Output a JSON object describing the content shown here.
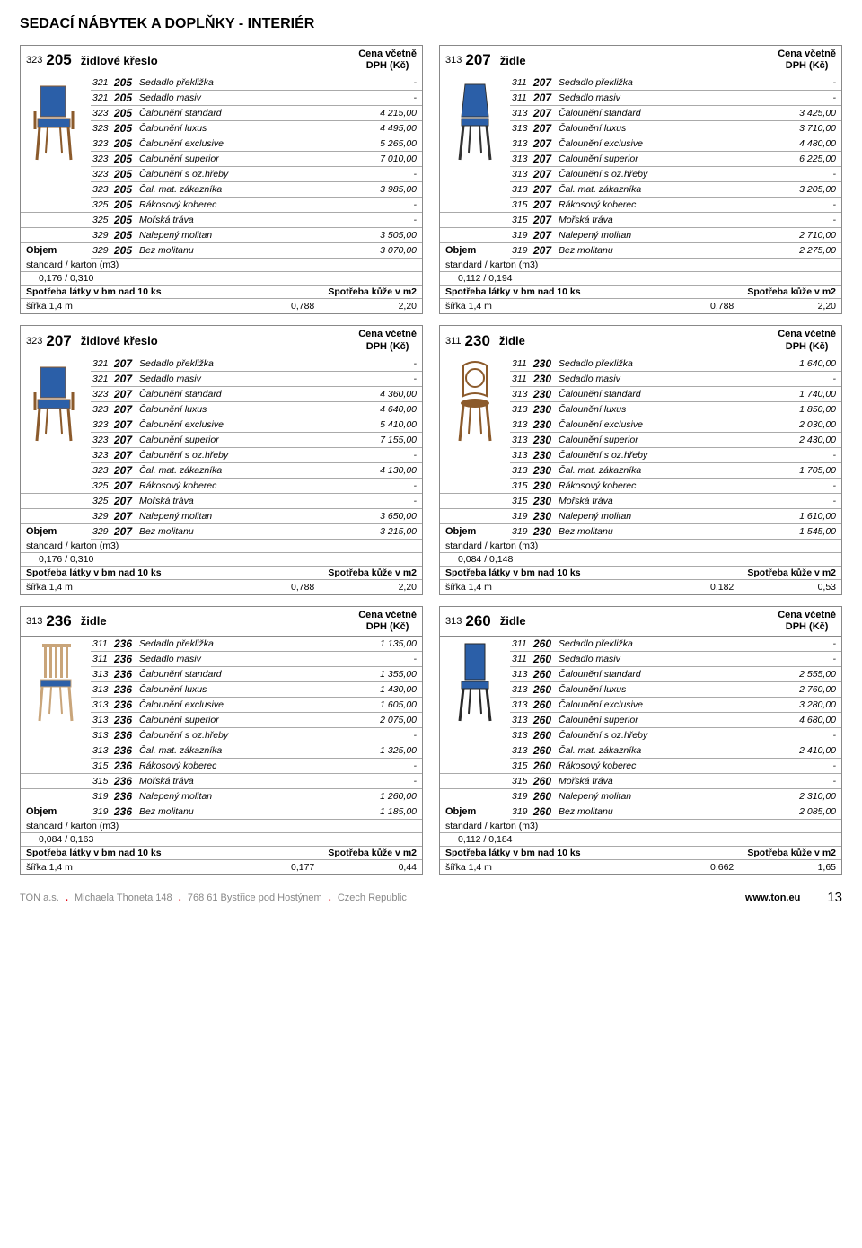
{
  "page_title": "SEDACÍ NÁBYTEK A DOPLŇKY - INTERIÉR",
  "price_header": {
    "line1": "Cena včetně",
    "line2": "DPH (Kč)"
  },
  "labels": {
    "objem": "Objem",
    "standard_karton": "standard / karton (m3)",
    "spotreba_latky": "Spotřeba látky v bm nad 10 ks",
    "spotreba_kuze": "Spotřeba kůže v m2",
    "sirka": "šířka 1,4 m"
  },
  "chair_colors": {
    "blue": "#2b5fa8",
    "wood": "#8b5a2b",
    "light": "#c9a57a"
  },
  "footer": {
    "company": "TON a.s.",
    "addr1": "Michaela Thoneta 148",
    "addr2": "768 61 Bystřice pod Hostýnem",
    "country": "Czech Republic",
    "site": "www.ton.eu",
    "page": "13"
  },
  "products": [
    {
      "hprefix": "323",
      "hcode": "205",
      "hname": "židlové křeslo",
      "chair": "armchair-blue",
      "rows": [
        [
          "321",
          "205",
          "Sedadlo překližka",
          "-"
        ],
        [
          "321",
          "205",
          "Sedadlo masiv",
          "-"
        ],
        [
          "323",
          "205",
          "Čalounění standard",
          "4 215,00"
        ],
        [
          "323",
          "205",
          "Čalounění luxus",
          "4 495,00"
        ],
        [
          "323",
          "205",
          "Čalounění exclusive",
          "5 265,00"
        ],
        [
          "323",
          "205",
          "Čalounění superior",
          "7 010,00"
        ],
        [
          "323",
          "205",
          "Čalounění s oz.hřeby",
          "-"
        ],
        [
          "323",
          "205",
          "Čal. mat. zákazníka",
          "3 985,00"
        ],
        [
          "325",
          "205",
          "Rákosový koberec",
          "-"
        ],
        [
          "325",
          "205",
          "Mořská tráva",
          "-"
        ],
        [
          "329",
          "205",
          "Nalepený molitan",
          "3 505,00"
        ],
        [
          "329",
          "205",
          "Bez molitanu",
          "3 070,00"
        ]
      ],
      "vol": "0,176  /  0,310",
      "s1": "0,788",
      "s2": "2,20"
    },
    {
      "hprefix": "313",
      "hcode": "207",
      "hname": "židle",
      "chair": "chair-blue-back",
      "rows": [
        [
          "311",
          "207",
          "Sedadlo překližka",
          "-"
        ],
        [
          "311",
          "207",
          "Sedadlo masiv",
          "-"
        ],
        [
          "313",
          "207",
          "Čalounění standard",
          "3 425,00"
        ],
        [
          "313",
          "207",
          "Čalounění luxus",
          "3 710,00"
        ],
        [
          "313",
          "207",
          "Čalounění exclusive",
          "4 480,00"
        ],
        [
          "313",
          "207",
          "Čalounění superior",
          "6 225,00"
        ],
        [
          "313",
          "207",
          "Čalounění s oz.hřeby",
          "-"
        ],
        [
          "313",
          "207",
          "Čal. mat. zákazníka",
          "3 205,00"
        ],
        [
          "315",
          "207",
          "Rákosový koberec",
          "-"
        ],
        [
          "315",
          "207",
          "Mořská tráva",
          "-"
        ],
        [
          "319",
          "207",
          "Nalepený molitan",
          "2 710,00"
        ],
        [
          "319",
          "207",
          "Bez molitanu",
          "2 275,00"
        ]
      ],
      "vol": "0,112  /  0,194",
      "s1": "0,788",
      "s2": "2,20"
    },
    {
      "hprefix": "323",
      "hcode": "207",
      "hname": "židlové křeslo",
      "chair": "armchair-blue",
      "rows": [
        [
          "321",
          "207",
          "Sedadlo překližka",
          "-"
        ],
        [
          "321",
          "207",
          "Sedadlo masiv",
          "-"
        ],
        [
          "323",
          "207",
          "Čalounění standard",
          "4 360,00"
        ],
        [
          "323",
          "207",
          "Čalounění luxus",
          "4 640,00"
        ],
        [
          "323",
          "207",
          "Čalounění exclusive",
          "5 410,00"
        ],
        [
          "323",
          "207",
          "Čalounění superior",
          "7 155,00"
        ],
        [
          "323",
          "207",
          "Čalounění s oz.hřeby",
          "-"
        ],
        [
          "323",
          "207",
          "Čal. mat. zákazníka",
          "4 130,00"
        ],
        [
          "325",
          "207",
          "Rákosový koberec",
          "-"
        ],
        [
          "325",
          "207",
          "Mořská tráva",
          "-"
        ],
        [
          "329",
          "207",
          "Nalepený molitan",
          "3 650,00"
        ],
        [
          "329",
          "207",
          "Bez molitanu",
          "3 215,00"
        ]
      ],
      "vol": "0,176  /  0,310",
      "s1": "0,788",
      "s2": "2,20"
    },
    {
      "hprefix": "311",
      "hcode": "230",
      "hname": "židle",
      "chair": "chair-wood-round",
      "rows": [
        [
          "311",
          "230",
          "Sedadlo překližka",
          "1 640,00"
        ],
        [
          "311",
          "230",
          "Sedadlo masiv",
          "-"
        ],
        [
          "313",
          "230",
          "Čalounění standard",
          "1 740,00"
        ],
        [
          "313",
          "230",
          "Čalounění luxus",
          "1 850,00"
        ],
        [
          "313",
          "230",
          "Čalounění exclusive",
          "2 030,00"
        ],
        [
          "313",
          "230",
          "Čalounění superior",
          "2 430,00"
        ],
        [
          "313",
          "230",
          "Čalounění s oz.hřeby",
          "-"
        ],
        [
          "313",
          "230",
          "Čal. mat. zákazníka",
          "1 705,00"
        ],
        [
          "315",
          "230",
          "Rákosový koberec",
          "-"
        ],
        [
          "315",
          "230",
          "Mořská tráva",
          "-"
        ],
        [
          "319",
          "230",
          "Nalepený molitan",
          "1 610,00"
        ],
        [
          "319",
          "230",
          "Bez molitanu",
          "1 545,00"
        ]
      ],
      "vol": "0,084  /  0,148",
      "s1": "0,182",
      "s2": "0,53"
    },
    {
      "hprefix": "313",
      "hcode": "236",
      "hname": "židle",
      "chair": "chair-light-slat",
      "rows": [
        [
          "311",
          "236",
          "Sedadlo překližka",
          "1 135,00"
        ],
        [
          "311",
          "236",
          "Sedadlo masiv",
          "-"
        ],
        [
          "313",
          "236",
          "Čalounění standard",
          "1 355,00"
        ],
        [
          "313",
          "236",
          "Čalounění luxus",
          "1 430,00"
        ],
        [
          "313",
          "236",
          "Čalounění exclusive",
          "1 605,00"
        ],
        [
          "313",
          "236",
          "Čalounění superior",
          "2 075,00"
        ],
        [
          "313",
          "236",
          "Čalounění s oz.hřeby",
          "-"
        ],
        [
          "313",
          "236",
          "Čal. mat. zákazníka",
          "1 325,00"
        ],
        [
          "315",
          "236",
          "Rákosový koberec",
          "-"
        ],
        [
          "315",
          "236",
          "Mořská tráva",
          "-"
        ],
        [
          "319",
          "236",
          "Nalepený molitan",
          "1 260,00"
        ],
        [
          "319",
          "236",
          "Bez molitanu",
          "1 185,00"
        ]
      ],
      "vol": "0,084  /  0,163",
      "s1": "0,177",
      "s2": "0,44"
    },
    {
      "hprefix": "313",
      "hcode": "260",
      "hname": "židle",
      "chair": "chair-blue-tall",
      "rows": [
        [
          "311",
          "260",
          "Sedadlo překližka",
          "-"
        ],
        [
          "311",
          "260",
          "Sedadlo masiv",
          "-"
        ],
        [
          "313",
          "260",
          "Čalounění standard",
          "2 555,00"
        ],
        [
          "313",
          "260",
          "Čalounění luxus",
          "2 760,00"
        ],
        [
          "313",
          "260",
          "Čalounění exclusive",
          "3 280,00"
        ],
        [
          "313",
          "260",
          "Čalounění superior",
          "4 680,00"
        ],
        [
          "313",
          "260",
          "Čalounění s oz.hřeby",
          "-"
        ],
        [
          "313",
          "260",
          "Čal. mat. zákazníka",
          "2 410,00"
        ],
        [
          "315",
          "260",
          "Rákosový koberec",
          "-"
        ],
        [
          "315",
          "260",
          "Mořská tráva",
          "-"
        ],
        [
          "319",
          "260",
          "Nalepený molitan",
          "2 310,00"
        ],
        [
          "319",
          "260",
          "Bez molitanu",
          "2 085,00"
        ]
      ],
      "vol": "0,112  /  0,184",
      "s1": "0,662",
      "s2": "1,65"
    }
  ]
}
